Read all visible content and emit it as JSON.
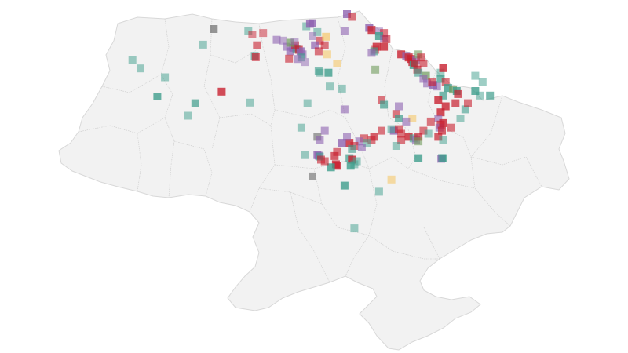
{
  "map": {
    "title": "",
    "background": "#ffffff",
    "land_color": "#f2f2f2",
    "border_color": "#d8d8d8"
  },
  "categories": [
    {
      "id": "red",
      "color": "#c8202f"
    },
    {
      "id": "teal",
      "color": "#3e9d8c"
    },
    {
      "id": "purple",
      "color": "#8e63b0"
    },
    {
      "id": "yellow",
      "color": "#f5c86a"
    },
    {
      "id": "olive",
      "color": "#6f9b5c"
    },
    {
      "id": "gray",
      "color": "#7c7c7c"
    }
  ],
  "markers": [
    {
      "lon": 24.03,
      "lat": 49.84,
      "c": "teal",
      "o": 0.5
    },
    {
      "lon": 23.7,
      "lat": 50.12,
      "c": "teal",
      "o": 0.5
    },
    {
      "lon": 25.02,
      "lat": 49.55,
      "c": "teal",
      "o": 0.5
    },
    {
      "lon": 24.71,
      "lat": 48.92,
      "c": "teal",
      "o": 0.8
    },
    {
      "lon": 25.94,
      "lat": 48.29,
      "c": "teal",
      "o": 0.5
    },
    {
      "lon": 26.25,
      "lat": 48.7,
      "c": "teal",
      "o": 0.7
    },
    {
      "lon": 26.57,
      "lat": 50.62,
      "c": "teal",
      "o": 0.5
    },
    {
      "lon": 27.0,
      "lat": 51.13,
      "c": "gray",
      "o": 0.8
    },
    {
      "lon": 28.66,
      "lat": 50.25,
      "c": "teal",
      "o": 0.6
    },
    {
      "lon": 28.7,
      "lat": 50.21,
      "c": "red",
      "o": 0.7
    },
    {
      "lon": 28.4,
      "lat": 51.08,
      "c": "teal",
      "o": 0.5
    },
    {
      "lon": 28.56,
      "lat": 50.95,
      "c": "red",
      "o": 0.5
    },
    {
      "lon": 28.75,
      "lat": 50.6,
      "c": "red",
      "o": 0.6
    },
    {
      "lon": 29.0,
      "lat": 51.0,
      "c": "red",
      "o": 0.5
    },
    {
      "lon": 27.32,
      "lat": 49.08,
      "c": "red",
      "o": 0.8
    },
    {
      "lon": 28.48,
      "lat": 48.72,
      "c": "teal",
      "o": 0.5
    },
    {
      "lon": 29.55,
      "lat": 50.78,
      "c": "purple",
      "o": 0.6
    },
    {
      "lon": 29.8,
      "lat": 50.75,
      "c": "purple",
      "o": 0.5
    },
    {
      "lon": 29.95,
      "lat": 50.55,
      "c": "purple",
      "o": 0.6
    },
    {
      "lon": 30.1,
      "lat": 50.4,
      "c": "purple",
      "o": 0.7
    },
    {
      "lon": 30.22,
      "lat": 50.52,
      "c": "purple",
      "o": 0.8
    },
    {
      "lon": 30.35,
      "lat": 50.48,
      "c": "teal",
      "o": 0.6
    },
    {
      "lon": 30.45,
      "lat": 50.45,
      "c": "red",
      "o": 0.7
    },
    {
      "lon": 30.52,
      "lat": 50.4,
      "c": "purple",
      "o": 0.8
    },
    {
      "lon": 30.6,
      "lat": 50.3,
      "c": "purple",
      "o": 0.6
    },
    {
      "lon": 30.55,
      "lat": 50.2,
      "c": "teal",
      "o": 0.6
    },
    {
      "lon": 30.4,
      "lat": 50.15,
      "c": "purple",
      "o": 0.6
    },
    {
      "lon": 30.05,
      "lat": 50.16,
      "c": "red",
      "o": 0.6
    },
    {
      "lon": 30.3,
      "lat": 50.6,
      "c": "red",
      "o": 0.6
    },
    {
      "lon": 30.7,
      "lat": 50.05,
      "c": "purple",
      "o": 0.5
    },
    {
      "lon": 30.1,
      "lat": 50.68,
      "c": "olive",
      "o": 0.7
    },
    {
      "lon": 30.28,
      "lat": 50.72,
      "c": "purple",
      "o": 0.5
    },
    {
      "lon": 30.75,
      "lat": 51.22,
      "c": "teal",
      "o": 0.5
    },
    {
      "lon": 30.9,
      "lat": 51.3,
      "c": "purple",
      "o": 0.8
    },
    {
      "lon": 31.0,
      "lat": 51.32,
      "c": "purple",
      "o": 0.8
    },
    {
      "lon": 31.2,
      "lat": 51.03,
      "c": "teal",
      "o": 0.5
    },
    {
      "lon": 31.0,
      "lat": 50.9,
      "c": "purple",
      "o": 0.5
    },
    {
      "lon": 31.3,
      "lat": 50.75,
      "c": "red",
      "o": 0.6
    },
    {
      "lon": 31.1,
      "lat": 50.6,
      "c": "purple",
      "o": 0.7
    },
    {
      "lon": 31.55,
      "lat": 50.88,
      "c": "yellow",
      "o": 0.7
    },
    {
      "lon": 31.5,
      "lat": 50.6,
      "c": "red",
      "o": 0.6
    },
    {
      "lon": 31.25,
      "lat": 50.4,
      "c": "red",
      "o": 0.6
    },
    {
      "lon": 31.6,
      "lat": 50.3,
      "c": "yellow",
      "o": 0.6
    },
    {
      "lon": 32.4,
      "lat": 51.62,
      "c": "purple",
      "o": 0.8
    },
    {
      "lon": 32.6,
      "lat": 51.53,
      "c": "red",
      "o": 0.6
    },
    {
      "lon": 32.3,
      "lat": 51.08,
      "c": "purple",
      "o": 0.6
    },
    {
      "lon": 32.0,
      "lat": 50.0,
      "c": "yellow",
      "o": 0.6
    },
    {
      "lon": 31.25,
      "lat": 49.75,
      "c": "teal",
      "o": 0.6
    },
    {
      "lon": 31.3,
      "lat": 49.7,
      "c": "teal",
      "o": 0.5
    },
    {
      "lon": 31.65,
      "lat": 49.7,
      "c": "teal",
      "o": 0.8
    },
    {
      "lon": 31.7,
      "lat": 49.25,
      "c": "teal",
      "o": 0.5
    },
    {
      "lon": 32.2,
      "lat": 49.18,
      "c": "teal",
      "o": 0.5
    },
    {
      "lon": 33.3,
      "lat": 51.17,
      "c": "purple",
      "o": 0.8
    },
    {
      "lon": 33.4,
      "lat": 51.1,
      "c": "red",
      "o": 0.8
    },
    {
      "lon": 33.7,
      "lat": 51.05,
      "c": "purple",
      "o": 0.5
    },
    {
      "lon": 33.9,
      "lat": 51.0,
      "c": "red",
      "o": 0.6
    },
    {
      "lon": 33.7,
      "lat": 50.9,
      "c": "teal",
      "o": 0.8
    },
    {
      "lon": 33.9,
      "lat": 50.82,
      "c": "purple",
      "o": 0.6
    },
    {
      "lon": 34.0,
      "lat": 50.8,
      "c": "red",
      "o": 0.6
    },
    {
      "lon": 33.6,
      "lat": 50.55,
      "c": "red",
      "o": 0.8
    },
    {
      "lon": 33.55,
      "lat": 50.45,
      "c": "red",
      "o": 0.5
    },
    {
      "lon": 33.5,
      "lat": 50.4,
      "c": "teal",
      "o": 0.6
    },
    {
      "lon": 33.4,
      "lat": 50.35,
      "c": "purple",
      "o": 0.6
    },
    {
      "lon": 33.9,
      "lat": 50.55,
      "c": "red",
      "o": 0.8
    },
    {
      "lon": 33.55,
      "lat": 49.8,
      "c": "olive",
      "o": 0.6
    },
    {
      "lon": 34.6,
      "lat": 50.3,
      "c": "red",
      "o": 0.8
    },
    {
      "lon": 34.8,
      "lat": 50.25,
      "c": "purple",
      "o": 0.7
    },
    {
      "lon": 34.9,
      "lat": 50.2,
      "c": "red",
      "o": 0.8
    },
    {
      "lon": 35.0,
      "lat": 50.15,
      "c": "red",
      "o": 0.8
    },
    {
      "lon": 35.05,
      "lat": 50.05,
      "c": "red",
      "o": 0.8
    },
    {
      "lon": 35.2,
      "lat": 50.1,
      "c": "purple",
      "o": 0.6
    },
    {
      "lon": 35.1,
      "lat": 49.95,
      "c": "teal",
      "o": 0.8
    },
    {
      "lon": 35.15,
      "lat": 50.0,
      "c": "red",
      "o": 0.7
    },
    {
      "lon": 35.3,
      "lat": 50.3,
      "c": "olive",
      "o": 0.6
    },
    {
      "lon": 35.4,
      "lat": 50.2,
      "c": "red",
      "o": 0.6
    },
    {
      "lon": 35.5,
      "lat": 50.0,
      "c": "red",
      "o": 0.6
    },
    {
      "lon": 35.25,
      "lat": 49.8,
      "c": "red",
      "o": 0.7
    },
    {
      "lon": 35.3,
      "lat": 49.7,
      "c": "teal",
      "o": 0.6
    },
    {
      "lon": 35.6,
      "lat": 49.6,
      "c": "olive",
      "o": 0.7
    },
    {
      "lon": 35.5,
      "lat": 49.5,
      "c": "purple",
      "o": 0.6
    },
    {
      "lon": 35.65,
      "lat": 49.35,
      "c": "purple",
      "o": 0.6
    },
    {
      "lon": 35.9,
      "lat": 49.3,
      "c": "purple",
      "o": 0.8
    },
    {
      "lon": 36.05,
      "lat": 49.25,
      "c": "purple",
      "o": 0.6
    },
    {
      "lon": 35.85,
      "lat": 49.4,
      "c": "red",
      "o": 0.6
    },
    {
      "lon": 36.2,
      "lat": 49.7,
      "c": "teal",
      "o": 0.5
    },
    {
      "lon": 36.3,
      "lat": 49.85,
      "c": "red",
      "o": 0.8
    },
    {
      "lon": 36.2,
      "lat": 49.5,
      "c": "teal",
      "o": 0.7
    },
    {
      "lon": 36.4,
      "lat": 49.4,
      "c": "red",
      "o": 0.6
    },
    {
      "lon": 36.5,
      "lat": 49.2,
      "c": "teal",
      "o": 0.8
    },
    {
      "lon": 36.7,
      "lat": 49.15,
      "c": "olive",
      "o": 0.7
    },
    {
      "lon": 36.85,
      "lat": 49.1,
      "c": "teal",
      "o": 0.8
    },
    {
      "lon": 36.9,
      "lat": 49.0,
      "c": "red",
      "o": 0.7
    },
    {
      "lon": 36.3,
      "lat": 48.95,
      "c": "teal",
      "o": 0.7
    },
    {
      "lon": 36.1,
      "lat": 48.8,
      "c": "red",
      "o": 0.8
    },
    {
      "lon": 36.4,
      "lat": 48.6,
      "c": "red",
      "o": 0.8
    },
    {
      "lon": 36.8,
      "lat": 48.7,
      "c": "red",
      "o": 0.7
    },
    {
      "lon": 36.2,
      "lat": 48.4,
      "c": "red",
      "o": 0.8
    },
    {
      "lon": 36.1,
      "lat": 48.2,
      "c": "purple",
      "o": 0.6
    },
    {
      "lon": 36.2,
      "lat": 48.0,
      "c": "red",
      "o": 0.7
    },
    {
      "lon": 36.15,
      "lat": 47.9,
      "c": "purple",
      "o": 0.6
    },
    {
      "lon": 36.3,
      "lat": 48.05,
      "c": "red",
      "o": 0.8
    },
    {
      "lon": 36.25,
      "lat": 47.8,
      "c": "red",
      "o": 0.7
    },
    {
      "lon": 35.8,
      "lat": 48.1,
      "c": "red",
      "o": 0.6
    },
    {
      "lon": 35.5,
      "lat": 47.8,
      "c": "red",
      "o": 0.6
    },
    {
      "lon": 35.7,
      "lat": 47.7,
      "c": "teal",
      "o": 0.5
    },
    {
      "lon": 36.1,
      "lat": 47.6,
      "c": "red",
      "o": 0.7
    },
    {
      "lon": 36.3,
      "lat": 47.5,
      "c": "teal",
      "o": 0.5
    },
    {
      "lon": 36.6,
      "lat": 47.9,
      "c": "red",
      "o": 0.6
    },
    {
      "lon": 37.0,
      "lat": 48.2,
      "c": "teal",
      "o": 0.5
    },
    {
      "lon": 37.2,
      "lat": 48.5,
      "c": "teal",
      "o": 0.6
    },
    {
      "lon": 37.3,
      "lat": 48.7,
      "c": "red",
      "o": 0.6
    },
    {
      "lon": 37.6,
      "lat": 49.1,
      "c": "teal",
      "o": 0.8
    },
    {
      "lon": 37.8,
      "lat": 48.95,
      "c": "teal",
      "o": 0.5
    },
    {
      "lon": 37.9,
      "lat": 49.4,
      "c": "teal",
      "o": 0.5
    },
    {
      "lon": 38.2,
      "lat": 48.95,
      "c": "teal",
      "o": 0.7
    },
    {
      "lon": 37.6,
      "lat": 49.6,
      "c": "teal",
      "o": 0.5
    },
    {
      "lon": 36.25,
      "lat": 46.9,
      "c": "teal",
      "o": 0.8
    },
    {
      "lon": 36.22,
      "lat": 46.88,
      "c": "purple",
      "o": 0.6
    },
    {
      "lon": 36.3,
      "lat": 46.9,
      "c": "teal",
      "o": 0.7
    },
    {
      "lon": 35.05,
      "lat": 48.2,
      "c": "yellow",
      "o": 0.6
    },
    {
      "lon": 34.4,
      "lat": 48.35,
      "c": "red",
      "o": 0.6
    },
    {
      "lon": 34.5,
      "lat": 48.2,
      "c": "teal",
      "o": 0.7
    },
    {
      "lon": 34.8,
      "lat": 48.1,
      "c": "purple",
      "o": 0.6
    },
    {
      "lon": 34.3,
      "lat": 47.8,
      "c": "purple",
      "o": 0.8
    },
    {
      "lon": 34.2,
      "lat": 47.85,
      "c": "teal",
      "o": 0.5
    },
    {
      "lon": 34.5,
      "lat": 47.85,
      "c": "red",
      "o": 0.6
    },
    {
      "lon": 34.6,
      "lat": 47.7,
      "c": "red",
      "o": 0.6
    },
    {
      "lon": 34.9,
      "lat": 47.6,
      "c": "red",
      "o": 0.8
    },
    {
      "lon": 35.1,
      "lat": 47.55,
      "c": "teal",
      "o": 0.6
    },
    {
      "lon": 35.2,
      "lat": 47.5,
      "c": "purple",
      "o": 0.6
    },
    {
      "lon": 35.3,
      "lat": 47.6,
      "c": "red",
      "o": 0.7
    },
    {
      "lon": 35.3,
      "lat": 47.45,
      "c": "olive",
      "o": 0.6
    },
    {
      "lon": 34.6,
      "lat": 47.5,
      "c": "red",
      "o": 0.6
    },
    {
      "lon": 34.4,
      "lat": 47.3,
      "c": "teal",
      "o": 0.5
    },
    {
      "lon": 35.3,
      "lat": 46.9,
      "c": "teal",
      "o": 0.8
    },
    {
      "lon": 33.8,
      "lat": 47.8,
      "c": "red",
      "o": 0.6
    },
    {
      "lon": 33.5,
      "lat": 47.6,
      "c": "red",
      "o": 0.7
    },
    {
      "lon": 33.4,
      "lat": 47.48,
      "c": "red",
      "o": 0.6
    },
    {
      "lon": 33.1,
      "lat": 47.55,
      "c": "red",
      "o": 0.6
    },
    {
      "lon": 32.9,
      "lat": 47.45,
      "c": "purple",
      "o": 0.6
    },
    {
      "lon": 33.2,
      "lat": 47.4,
      "c": "teal",
      "o": 0.5
    },
    {
      "lon": 32.7,
      "lat": 47.3,
      "c": "red",
      "o": 0.6
    },
    {
      "lon": 32.5,
      "lat": 47.4,
      "c": "red",
      "o": 0.8
    },
    {
      "lon": 32.6,
      "lat": 47.2,
      "c": "teal",
      "o": 0.6
    },
    {
      "lon": 33.0,
      "lat": 47.25,
      "c": "purple",
      "o": 0.6
    },
    {
      "lon": 32.2,
      "lat": 47.4,
      "c": "purple",
      "o": 0.8
    },
    {
      "lon": 32.4,
      "lat": 47.6,
      "c": "purple",
      "o": 0.6
    },
    {
      "lon": 31.9,
      "lat": 46.97,
      "c": "red",
      "o": 0.7
    },
    {
      "lon": 32.0,
      "lat": 47.1,
      "c": "red",
      "o": 0.6
    },
    {
      "lon": 32.5,
      "lat": 46.9,
      "c": "teal",
      "o": 0.7
    },
    {
      "lon": 32.6,
      "lat": 46.85,
      "c": "red",
      "o": 0.8
    },
    {
      "lon": 32.7,
      "lat": 46.7,
      "c": "teal",
      "o": 0.5
    },
    {
      "lon": 32.55,
      "lat": 46.65,
      "c": "teal",
      "o": 0.8
    },
    {
      "lon": 32.8,
      "lat": 46.8,
      "c": "teal",
      "o": 0.5
    },
    {
      "lon": 31.95,
      "lat": 46.7,
      "c": "red",
      "o": 0.8
    },
    {
      "lon": 32.0,
      "lat": 46.65,
      "c": "red",
      "o": 0.8
    },
    {
      "lon": 31.75,
      "lat": 46.6,
      "c": "teal",
      "o": 0.8
    },
    {
      "lon": 31.5,
      "lat": 46.8,
      "c": "red",
      "o": 0.6
    },
    {
      "lon": 31.2,
      "lat": 47.0,
      "c": "purple",
      "o": 0.8
    },
    {
      "lon": 31.25,
      "lat": 46.98,
      "c": "purple",
      "o": 0.7
    },
    {
      "lon": 31.3,
      "lat": 46.95,
      "c": "teal",
      "o": 0.6
    },
    {
      "lon": 31.35,
      "lat": 46.85,
      "c": "red",
      "o": 0.6
    },
    {
      "lon": 30.7,
      "lat": 47.0,
      "c": "teal",
      "o": 0.5
    },
    {
      "lon": 31.2,
      "lat": 47.6,
      "c": "gray",
      "o": 0.7
    },
    {
      "lon": 31.3,
      "lat": 47.5,
      "c": "purple",
      "o": 0.6
    },
    {
      "lon": 31.5,
      "lat": 47.8,
      "c": "purple",
      "o": 0.6
    },
    {
      "lon": 30.55,
      "lat": 47.9,
      "c": "teal",
      "o": 0.5
    },
    {
      "lon": 31.0,
      "lat": 46.3,
      "c": "gray",
      "o": 0.7
    },
    {
      "lon": 32.3,
      "lat": 46.0,
      "c": "teal",
      "o": 0.8
    },
    {
      "lon": 34.2,
      "lat": 46.2,
      "c": "yellow",
      "o": 0.6
    },
    {
      "lon": 33.7,
      "lat": 45.8,
      "c": "teal",
      "o": 0.5
    },
    {
      "lon": 32.7,
      "lat": 44.6,
      "c": "teal",
      "o": 0.5
    },
    {
      "lon": 30.8,
      "lat": 48.7,
      "c": "teal",
      "o": 0.5
    },
    {
      "lon": 32.3,
      "lat": 48.5,
      "c": "purple",
      "o": 0.6
    },
    {
      "lon": 33.8,
      "lat": 48.8,
      "c": "red",
      "o": 0.6
    },
    {
      "lon": 33.9,
      "lat": 48.65,
      "c": "teal",
      "o": 0.7
    },
    {
      "lon": 34.5,
      "lat": 48.6,
      "c": "purple",
      "o": 0.6
    }
  ]
}
